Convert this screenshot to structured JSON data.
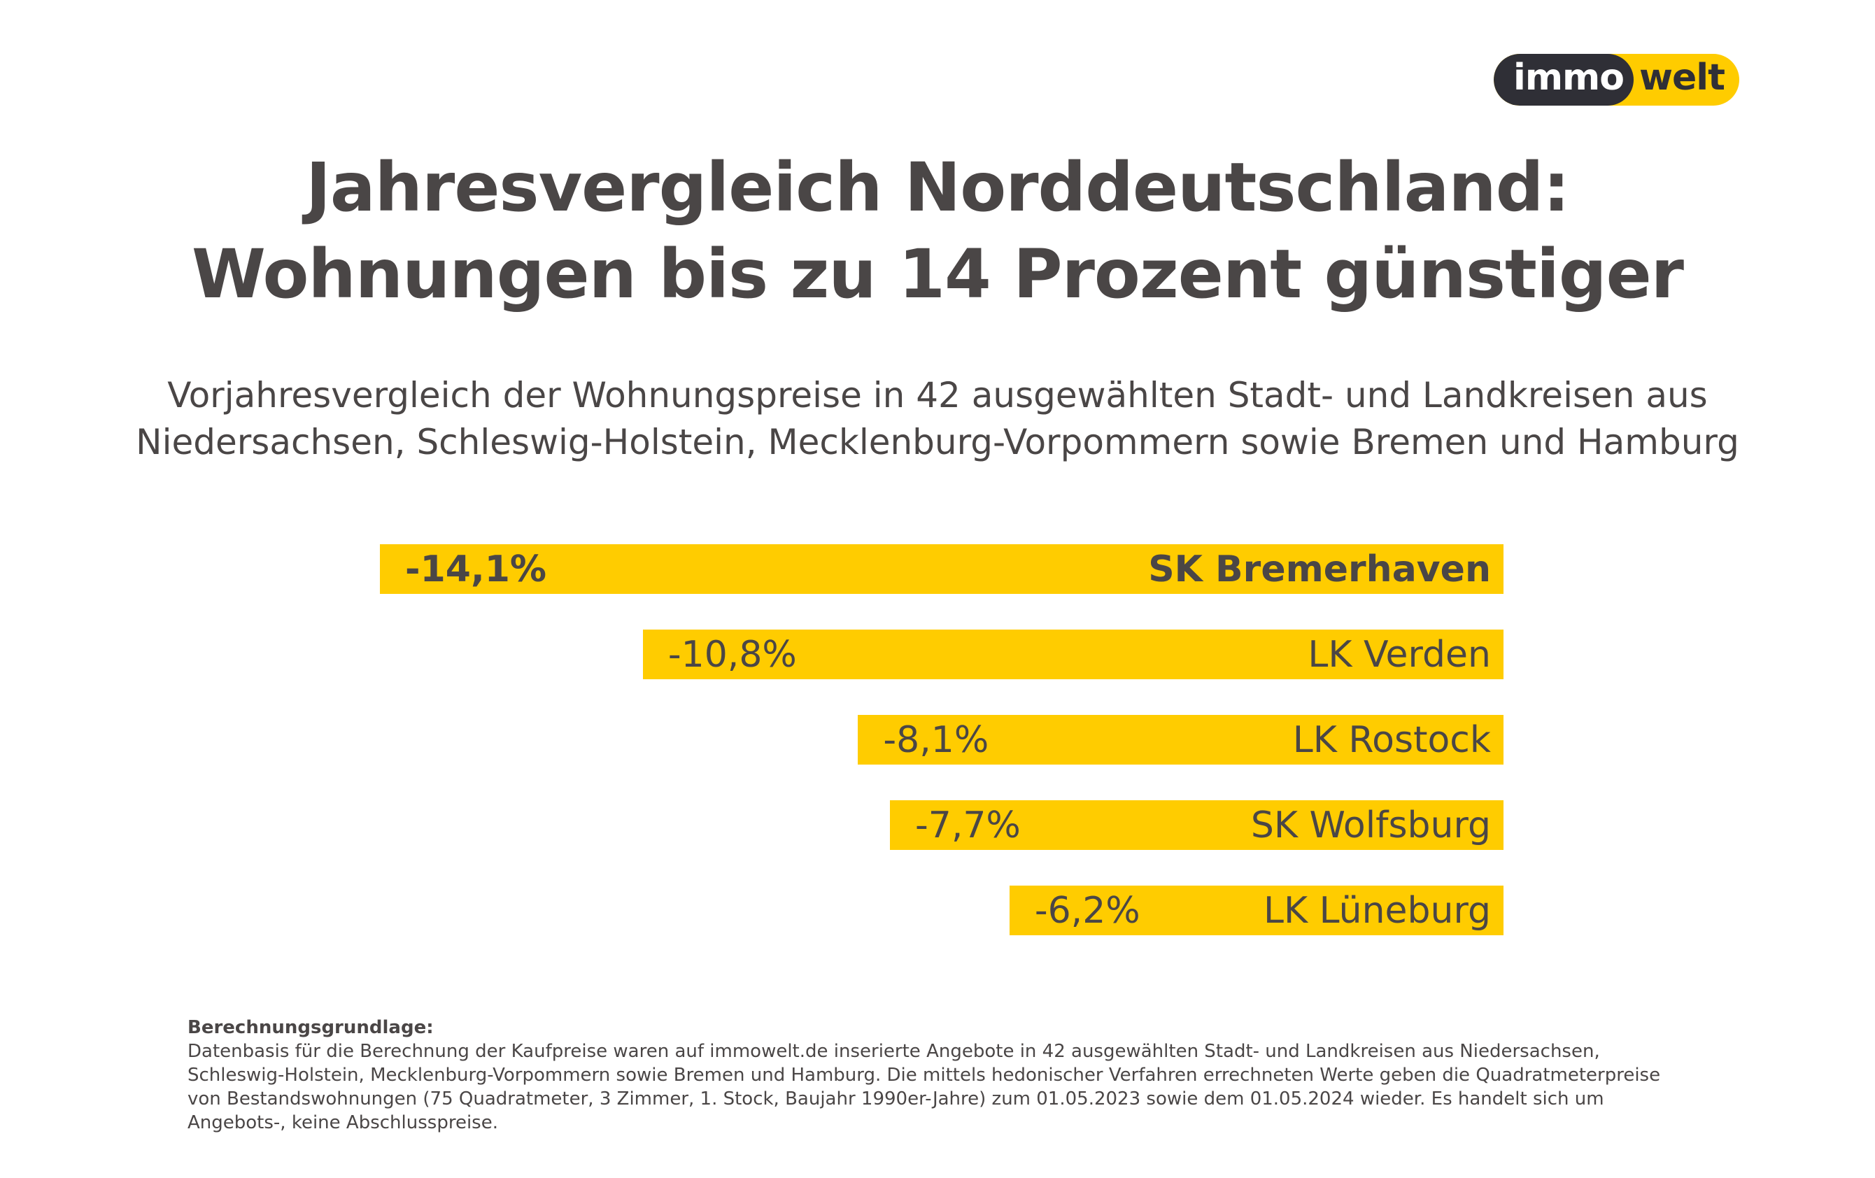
{
  "logo": {
    "part1": "immo",
    "part2": "welt",
    "colors": {
      "dark": "#2f2f36",
      "yellow": "#ffcc00"
    }
  },
  "title_line1": "Jahresvergleich Norddeutschland:",
  "title_line2": "Wohnungen bis zu 14 Prozent günstiger",
  "subtitle_line1": "Vorjahresvergleich der Wohnungspreise in 42 ausgewählten Stadt- und Landkreisen aus",
  "subtitle_line2": "Niedersachsen, Schleswig-Holstein, Mecklenburg-Vorpommern sowie Bremen und Hamburg",
  "chart_data": {
    "type": "bar",
    "orientation": "horizontal",
    "bar_color": "#ffcc00",
    "categories": [
      "SK Bremerhaven",
      "LK Verden",
      "LK Rostock",
      "SK Wolfsburg",
      "LK Lüneburg"
    ],
    "values": [
      -14.1,
      -10.8,
      -8.1,
      -7.7,
      -6.2
    ],
    "data_labels": [
      "-14,1%",
      "-10,8%",
      "-8,1%",
      "-7,7%",
      "-6,2%"
    ]
  },
  "footnote": {
    "heading": "Berechnungsgrundlage:",
    "text": "Datenbasis für die Berechnung der Kaufpreise waren auf immowelt.de inserierte Angebote in 42 ausgewählten Stadt- und Landkreisen aus Niedersachsen, Schleswig-Holstein, Mecklenburg-Vorpommern sowie Bremen und Hamburg. Die mittels hedonischer Verfahren errechneten Werte geben die Quadratmeterpreise von Bestandswohnungen (75 Quadratmeter, 3 Zimmer, 1. Stock, Baujahr 1990er-Jahre) zum 01.05.2023 sowie dem 01.05.2024 wieder. Es handelt sich um Angebots-, keine Abschlusspreise."
  }
}
